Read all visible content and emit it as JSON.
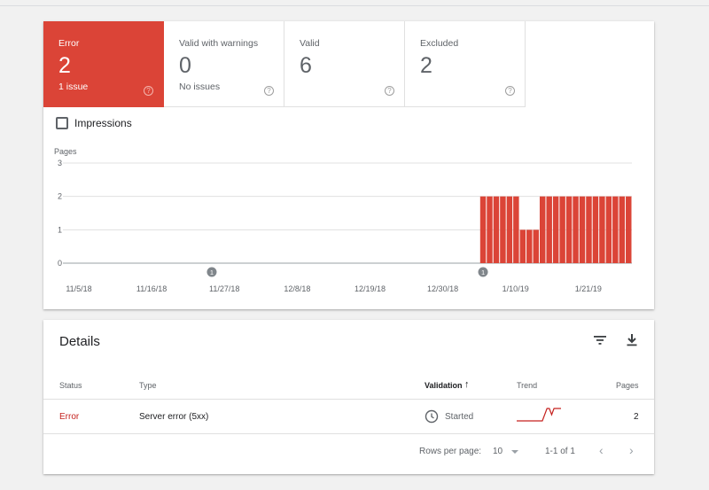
{
  "tiles": [
    {
      "label": "Error",
      "count": "2",
      "sub": "1 issue",
      "help": "?"
    },
    {
      "label": "Valid with warnings",
      "count": "0",
      "sub": "No issues",
      "help": "?"
    },
    {
      "label": "Valid",
      "count": "6",
      "sub": "",
      "help": "?"
    },
    {
      "label": "Excluded",
      "count": "2",
      "sub": "",
      "help": "?"
    }
  ],
  "impressions_label": "Impressions",
  "chart_data": {
    "type": "bar",
    "ylabel": "Pages",
    "ylim": [
      0,
      3
    ],
    "yticks": [
      0,
      1,
      2,
      3
    ],
    "xtick_labels": [
      "11/5/18",
      "11/16/18",
      "11/27/18",
      "12/8/18",
      "12/19/18",
      "12/30/18",
      "1/10/19",
      "1/21/19"
    ],
    "x_start": "11/5/18",
    "x_end": "1/30/19",
    "bar_color": "#db4437",
    "bars": [
      {
        "date": "1/7/19",
        "value": 2
      },
      {
        "date": "1/8/19",
        "value": 2
      },
      {
        "date": "1/9/19",
        "value": 2
      },
      {
        "date": "1/10/19",
        "value": 2
      },
      {
        "date": "1/11/19",
        "value": 2
      },
      {
        "date": "1/12/19",
        "value": 2
      },
      {
        "date": "1/13/19",
        "value": 1
      },
      {
        "date": "1/14/19",
        "value": 1
      },
      {
        "date": "1/15/19",
        "value": 1
      },
      {
        "date": "1/16/19",
        "value": 2
      },
      {
        "date": "1/17/19",
        "value": 2
      },
      {
        "date": "1/18/19",
        "value": 2
      },
      {
        "date": "1/19/19",
        "value": 2
      },
      {
        "date": "1/20/19",
        "value": 2
      },
      {
        "date": "1/21/19",
        "value": 2
      },
      {
        "date": "1/22/19",
        "value": 2
      },
      {
        "date": "1/23/19",
        "value": 2
      },
      {
        "date": "1/24/19",
        "value": 2
      },
      {
        "date": "1/25/19",
        "value": 2
      },
      {
        "date": "1/26/19",
        "value": 2
      },
      {
        "date": "1/27/19",
        "value": 2
      },
      {
        "date": "1/28/19",
        "value": 2
      },
      {
        "date": "1/29/19",
        "value": 2
      }
    ],
    "annotations": [
      {
        "date": "11/27/18",
        "label": "1"
      },
      {
        "date": "1/7/19",
        "label": "1"
      }
    ],
    "grid": true
  },
  "details": {
    "title": "Details",
    "filter_icon": "filter-icon",
    "download_icon": "download-icon",
    "columns": {
      "status": "Status",
      "type": "Type",
      "validation": "Validation",
      "validation_sort": "↑",
      "trend": "Trend",
      "pages": "Pages"
    },
    "rows": [
      {
        "status": "Error",
        "type": "Server error (5xx)",
        "validation": "Started",
        "pages": "2",
        "trend": [
          0,
          0,
          0,
          0,
          0,
          0,
          0,
          0,
          0,
          0,
          0,
          0,
          1,
          2,
          2,
          1,
          2,
          2,
          2,
          2
        ]
      }
    ],
    "pagination": {
      "rows_per_page_label": "Rows per page:",
      "rows_per_page": "10",
      "range": "1-1 of 1"
    },
    "status_color": "#c5221f"
  }
}
